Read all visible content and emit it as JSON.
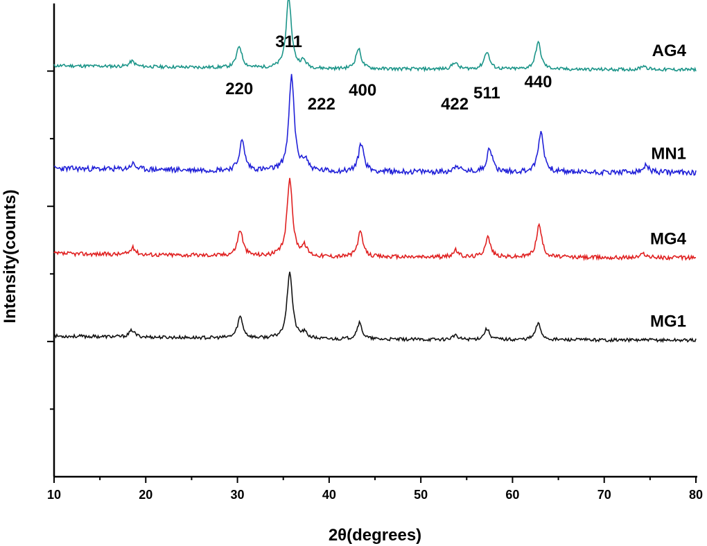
{
  "chart_data": {
    "type": "line",
    "title": "",
    "xlabel": "2θ(degrees)",
    "ylabel": "Intensity(counts)",
    "xlim": [
      10,
      80
    ],
    "x_ticks": [
      10,
      20,
      30,
      40,
      50,
      60,
      70,
      80
    ],
    "y_tick_labels_shown": false,
    "grid": false,
    "legend": "none",
    "peaks": [
      30.2,
      35.6,
      37.2,
      43.2,
      53.7,
      57.2,
      62.8
    ],
    "peak_labels": [
      {
        "text": "220",
        "x": 30.2
      },
      {
        "text": "311",
        "x": 35.6
      },
      {
        "text": "222",
        "x": 37.2
      },
      {
        "text": "400",
        "x": 43.2
      },
      {
        "text": "422",
        "x": 53.7
      },
      {
        "text": "511",
        "x": 57.2
      },
      {
        "text": "440",
        "x": 62.8
      }
    ],
    "series": [
      {
        "name": "AG4",
        "color": "#1a9488",
        "baseline": 3.02,
        "noise": 0.012,
        "seed": 11,
        "peaks": [
          {
            "x": 18.5,
            "h": 0.04
          },
          {
            "x": 30.2,
            "h": 0.16
          },
          {
            "x": 35.6,
            "h": 0.52
          },
          {
            "x": 37.2,
            "h": 0.05
          },
          {
            "x": 43.2,
            "h": 0.15
          },
          {
            "x": 53.7,
            "h": 0.05
          },
          {
            "x": 57.2,
            "h": 0.13
          },
          {
            "x": 62.8,
            "h": 0.2
          },
          {
            "x": 74.3,
            "h": 0.03
          }
        ]
      },
      {
        "name": "MN1",
        "color": "#2020d8",
        "baseline": 2.26,
        "noise": 0.02,
        "seed": 23,
        "peaks": [
          {
            "x": 18.6,
            "h": 0.04
          },
          {
            "x": 30.5,
            "h": 0.22
          },
          {
            "x": 35.9,
            "h": 0.7
          },
          {
            "x": 37.4,
            "h": 0.08
          },
          {
            "x": 43.5,
            "h": 0.21
          },
          {
            "x": 53.9,
            "h": 0.05
          },
          {
            "x": 57.5,
            "h": 0.18
          },
          {
            "x": 63.1,
            "h": 0.3
          },
          {
            "x": 74.6,
            "h": 0.05
          }
        ]
      },
      {
        "name": "MG4",
        "color": "#e02020",
        "baseline": 1.63,
        "noise": 0.015,
        "seed": 37,
        "peaks": [
          {
            "x": 18.6,
            "h": 0.05
          },
          {
            "x": 30.3,
            "h": 0.19
          },
          {
            "x": 35.7,
            "h": 0.58
          },
          {
            "x": 37.3,
            "h": 0.07
          },
          {
            "x": 43.4,
            "h": 0.18
          },
          {
            "x": 53.8,
            "h": 0.05
          },
          {
            "x": 57.3,
            "h": 0.15
          },
          {
            "x": 62.9,
            "h": 0.24
          },
          {
            "x": 74.3,
            "h": 0.03
          }
        ]
      },
      {
        "name": "MG1",
        "color": "#111111",
        "baseline": 1.02,
        "noise": 0.012,
        "seed": 53,
        "peaks": [
          {
            "x": 18.5,
            "h": 0.05
          },
          {
            "x": 30.3,
            "h": 0.16
          },
          {
            "x": 35.7,
            "h": 0.5
          },
          {
            "x": 37.3,
            "h": 0.04
          },
          {
            "x": 43.3,
            "h": 0.12
          },
          {
            "x": 53.7,
            "h": 0.03
          },
          {
            "x": 57.2,
            "h": 0.08
          },
          {
            "x": 62.8,
            "h": 0.12
          }
        ]
      }
    ]
  }
}
